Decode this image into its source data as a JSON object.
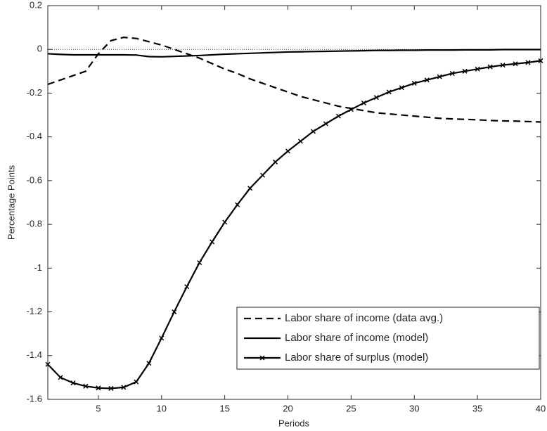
{
  "chart_data": {
    "type": "line",
    "xlabel": "Periods",
    "ylabel": "Percentage Points",
    "x": [
      1,
      2,
      3,
      4,
      5,
      6,
      7,
      8,
      9,
      10,
      11,
      12,
      13,
      14,
      15,
      16,
      17,
      18,
      19,
      20,
      21,
      22,
      23,
      24,
      25,
      26,
      27,
      28,
      29,
      30,
      31,
      32,
      33,
      34,
      35,
      36,
      37,
      38,
      39,
      40
    ],
    "series": [
      {
        "name": "Labor share of income (data avg.)",
        "color": "#000000",
        "dash": "dashed",
        "marker": "none",
        "values": [
          -0.16,
          -0.14,
          -0.12,
          -0.1,
          -0.02,
          0.04,
          0.055,
          0.05,
          0.035,
          0.02,
          0.0,
          -0.02,
          -0.04,
          -0.065,
          -0.09,
          -0.11,
          -0.135,
          -0.155,
          -0.175,
          -0.195,
          -0.215,
          -0.23,
          -0.245,
          -0.26,
          -0.27,
          -0.28,
          -0.29,
          -0.295,
          -0.3,
          -0.305,
          -0.31,
          -0.315,
          -0.318,
          -0.32,
          -0.322,
          -0.325,
          -0.327,
          -0.328,
          -0.33,
          -0.332
        ]
      },
      {
        "name": "Labor share of income (model)",
        "color": "#000000",
        "dash": "solid",
        "marker": "none",
        "values": [
          -0.02,
          -0.023,
          -0.025,
          -0.025,
          -0.025,
          -0.025,
          -0.025,
          -0.026,
          -0.033,
          -0.034,
          -0.032,
          -0.03,
          -0.028,
          -0.025,
          -0.022,
          -0.02,
          -0.018,
          -0.016,
          -0.014,
          -0.012,
          -0.011,
          -0.01,
          -0.009,
          -0.008,
          -0.007,
          -0.006,
          -0.005,
          -0.005,
          -0.004,
          -0.004,
          -0.003,
          -0.003,
          -0.003,
          -0.002,
          -0.002,
          -0.002,
          -0.001,
          -0.001,
          -0.001,
          -0.001
        ]
      },
      {
        "name": "Labor share of surplus (model)",
        "color": "#000000",
        "dash": "solid",
        "marker": "x",
        "values": [
          -1.44,
          -1.5,
          -1.525,
          -1.54,
          -1.548,
          -1.55,
          -1.545,
          -1.52,
          -1.435,
          -1.32,
          -1.2,
          -1.085,
          -0.975,
          -0.88,
          -0.79,
          -0.71,
          -0.635,
          -0.575,
          -0.515,
          -0.465,
          -0.42,
          -0.375,
          -0.34,
          -0.305,
          -0.275,
          -0.245,
          -0.22,
          -0.195,
          -0.175,
          -0.155,
          -0.14,
          -0.125,
          -0.11,
          -0.1,
          -0.09,
          -0.08,
          -0.072,
          -0.066,
          -0.06,
          -0.052
        ]
      }
    ],
    "xlim": [
      1,
      40
    ],
    "xticks": [
      5,
      10,
      15,
      20,
      25,
      30,
      35,
      40
    ],
    "ylim": [
      -1.6,
      0.2
    ],
    "yticks": [
      0.2,
      0,
      -0.2,
      -0.4,
      -0.6,
      -0.8,
      -1,
      -1.2,
      -1.4,
      -1.6
    ],
    "zero_line": true,
    "grid": false,
    "legend": "lower right"
  }
}
